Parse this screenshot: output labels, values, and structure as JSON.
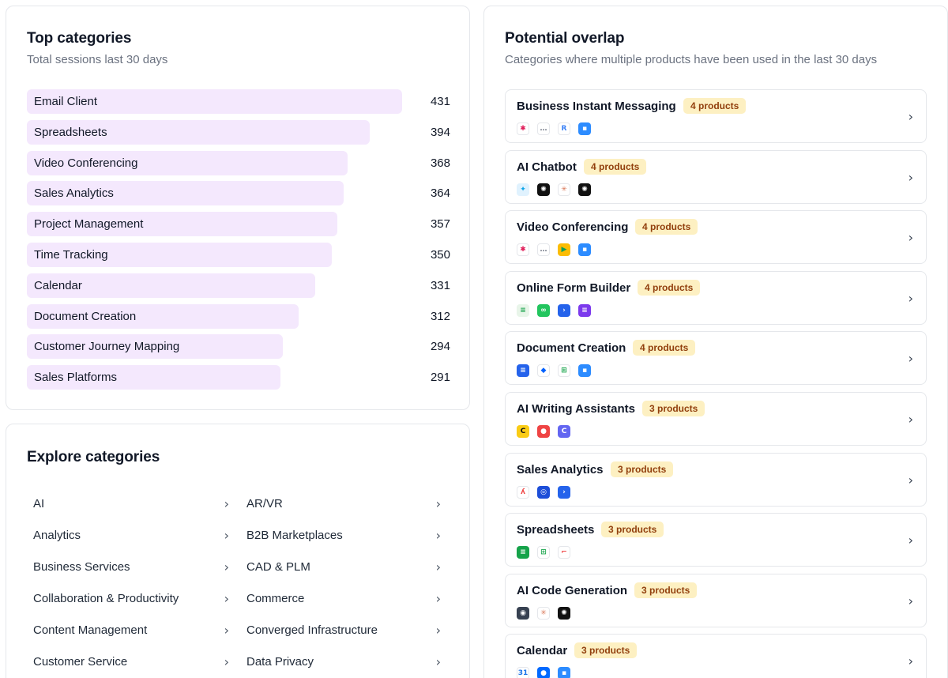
{
  "top_categories": {
    "title": "Top categories",
    "subtitle": "Total sessions last 30 days",
    "max": 431,
    "items": [
      {
        "label": "Email Client",
        "value": 431
      },
      {
        "label": "Spreadsheets",
        "value": 394
      },
      {
        "label": "Video Conferencing",
        "value": 368
      },
      {
        "label": "Sales Analytics",
        "value": 364
      },
      {
        "label": "Project Management",
        "value": 357
      },
      {
        "label": "Time Tracking",
        "value": 350
      },
      {
        "label": "Calendar",
        "value": 331
      },
      {
        "label": "Document Creation",
        "value": 312
      },
      {
        "label": "Customer Journey Mapping",
        "value": 294
      },
      {
        "label": "Sales Platforms",
        "value": 291
      }
    ]
  },
  "explore": {
    "title": "Explore categories",
    "left": [
      "AI",
      "Analytics",
      "Business Services",
      "Collaboration & Productivity",
      "Content Management",
      "Customer Service"
    ],
    "right": [
      "AR/VR",
      "B2B Marketplaces",
      "CAD & PLM",
      "Commerce",
      "Converged Infrastructure",
      "Data Privacy"
    ]
  },
  "overlap": {
    "title": "Potential overlap",
    "subtitle": "Categories where multiple products have been used in the last 30 days",
    "rows": [
      {
        "name": "Business Instant Messaging",
        "badge": "4 products",
        "icons": [
          {
            "name": "slack-icon",
            "glyph": "✱",
            "bg": "#ffffff",
            "fg": "#e01e5a"
          },
          {
            "name": "chat-bubble-icon",
            "glyph": "…",
            "bg": "#ffffff",
            "fg": "#6b7280"
          },
          {
            "name": "rocketchat-icon",
            "glyph": "R",
            "bg": "#ffffff",
            "fg": "#3b82f6"
          },
          {
            "name": "zoom-icon",
            "glyph": "▪",
            "bg": "#2d8cff",
            "fg": "#ffffff"
          }
        ]
      },
      {
        "name": "AI Chatbot",
        "badge": "4 products",
        "icons": [
          {
            "name": "perplexity-icon",
            "glyph": "✦",
            "bg": "#e0f2fe",
            "fg": "#0ea5e9"
          },
          {
            "name": "openai-icon",
            "glyph": "✺",
            "bg": "#111111",
            "fg": "#ffffff"
          },
          {
            "name": "claude-icon",
            "glyph": "✳",
            "bg": "#ffffff",
            "fg": "#d97757"
          },
          {
            "name": "chatgpt-icon",
            "glyph": "✺",
            "bg": "#111111",
            "fg": "#ffffff"
          }
        ]
      },
      {
        "name": "Video Conferencing",
        "badge": "4 products",
        "icons": [
          {
            "name": "slack-icon",
            "glyph": "✱",
            "bg": "#ffffff",
            "fg": "#e01e5a"
          },
          {
            "name": "chat-bubble-icon",
            "glyph": "…",
            "bg": "#ffffff",
            "fg": "#6b7280"
          },
          {
            "name": "google-meet-icon",
            "glyph": "▶",
            "bg": "#fbbc04",
            "fg": "#0f9d58"
          },
          {
            "name": "zoom-icon",
            "glyph": "▪",
            "bg": "#2d8cff",
            "fg": "#ffffff"
          }
        ]
      },
      {
        "name": "Online Form Builder",
        "badge": "4 products",
        "icons": [
          {
            "name": "google-forms-icon",
            "glyph": "≡",
            "bg": "#e8f5e9",
            "fg": "#16a34a"
          },
          {
            "name": "jotform-icon",
            "glyph": "∞",
            "bg": "#22c55e",
            "fg": "#ffffff"
          },
          {
            "name": "typeform-icon",
            "glyph": "›",
            "bg": "#2563eb",
            "fg": "#ffffff"
          },
          {
            "name": "formstack-icon",
            "glyph": "≡",
            "bg": "#7c3aed",
            "fg": "#ffffff"
          }
        ]
      },
      {
        "name": "Document Creation",
        "badge": "4 products",
        "icons": [
          {
            "name": "google-docs-icon",
            "glyph": "≡",
            "bg": "#2563eb",
            "fg": "#ffffff"
          },
          {
            "name": "dropbox-icon",
            "glyph": "◆",
            "bg": "#ffffff",
            "fg": "#0061fe"
          },
          {
            "name": "google-sheets-icon",
            "glyph": "⊞",
            "bg": "#ffffff",
            "fg": "#16a34a"
          },
          {
            "name": "zoom-icon",
            "glyph": "▪",
            "bg": "#2d8cff",
            "fg": "#ffffff"
          }
        ]
      },
      {
        "name": "AI Writing Assistants",
        "badge": "3 products",
        "icons": [
          {
            "name": "writing-assistant-icon",
            "glyph": "C",
            "bg": "#facc15",
            "fg": "#111111"
          },
          {
            "name": "wordtune-icon",
            "glyph": "●",
            "bg": "#ef4444",
            "fg": "#ffffff"
          },
          {
            "name": "copyai-icon",
            "glyph": "C",
            "bg": "#6366f1",
            "fg": "#ffffff"
          }
        ]
      },
      {
        "name": "Sales Analytics",
        "badge": "3 products",
        "icons": [
          {
            "name": "gong-icon",
            "glyph": "ʎ",
            "bg": "#ffffff",
            "fg": "#ef4444"
          },
          {
            "name": "clari-icon",
            "glyph": "◎",
            "bg": "#1d4ed8",
            "fg": "#ffffff"
          },
          {
            "name": "outreach-icon",
            "glyph": "›",
            "bg": "#2563eb",
            "fg": "#ffffff"
          }
        ]
      },
      {
        "name": "Spreadsheets",
        "badge": "3 products",
        "icons": [
          {
            "name": "google-sheets-icon",
            "glyph": "≡",
            "bg": "#16a34a",
            "fg": "#ffffff"
          },
          {
            "name": "sheets-grid-icon",
            "glyph": "⊞",
            "bg": "#ffffff",
            "fg": "#16a34a"
          },
          {
            "name": "smartsheet-icon",
            "glyph": "⌐",
            "bg": "#ffffff",
            "fg": "#ef4444"
          }
        ]
      },
      {
        "name": "AI Code Generation",
        "badge": "3 products",
        "icons": [
          {
            "name": "cursor-icon",
            "glyph": "◉",
            "bg": "#374151",
            "fg": "#ffffff"
          },
          {
            "name": "claude-icon",
            "glyph": "✳",
            "bg": "#ffffff",
            "fg": "#d97757"
          },
          {
            "name": "openai-icon",
            "glyph": "✺",
            "bg": "#111111",
            "fg": "#ffffff"
          }
        ]
      },
      {
        "name": "Calendar",
        "badge": "3 products",
        "icons": [
          {
            "name": "google-calendar-icon",
            "glyph": "31",
            "bg": "#ffffff",
            "fg": "#1a73e8"
          },
          {
            "name": "calendly-icon",
            "glyph": "●",
            "bg": "#0069ff",
            "fg": "#ffffff"
          },
          {
            "name": "zoom-icon",
            "glyph": "▪",
            "bg": "#2d8cff",
            "fg": "#ffffff"
          }
        ]
      }
    ]
  }
}
